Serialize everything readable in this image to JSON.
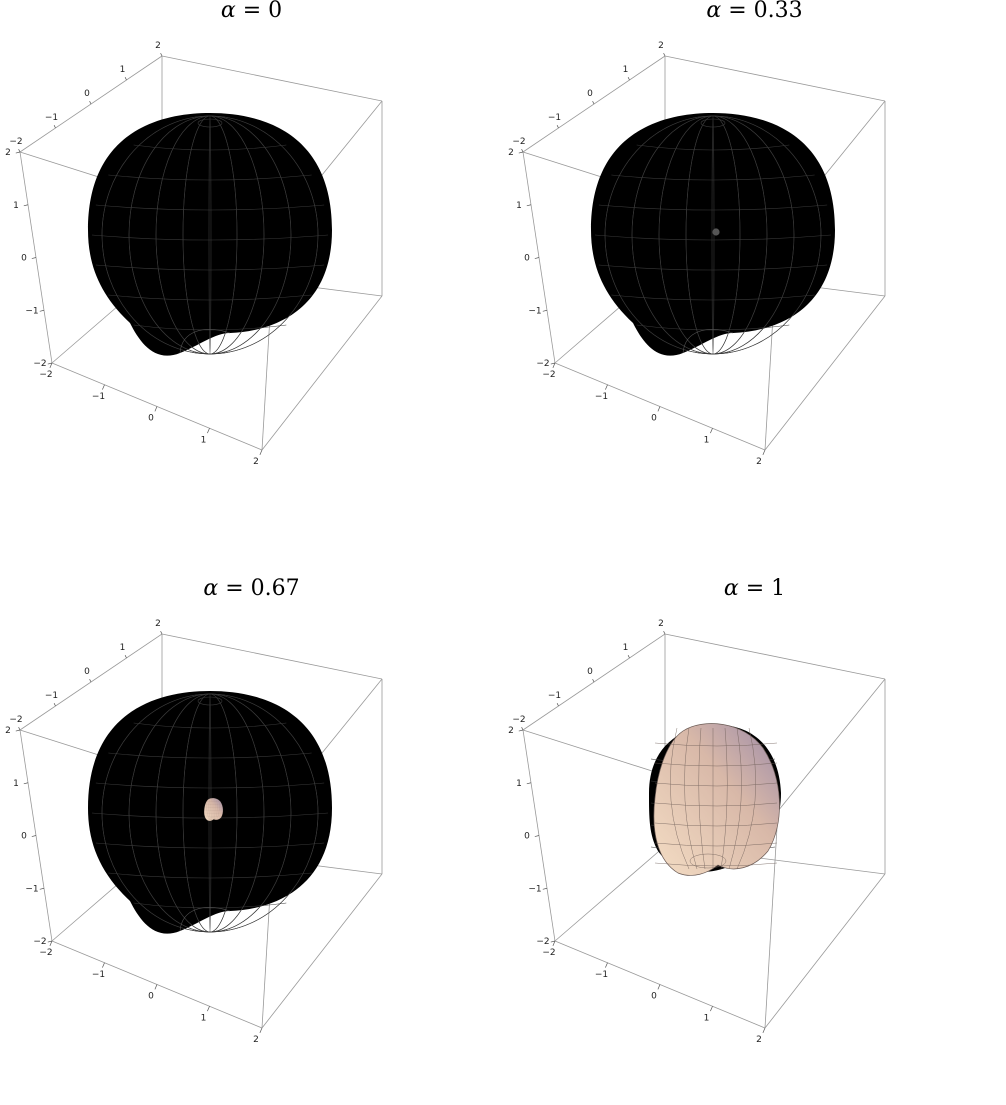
{
  "panels": [
    {
      "symbol": "α",
      "equals": "=",
      "value": "0",
      "alpha": 0
    },
    {
      "symbol": "α",
      "equals": "=",
      "value": "0.33",
      "alpha": 0.33
    },
    {
      "symbol": "α",
      "equals": "=",
      "value": "0.67",
      "alpha": 0.67
    },
    {
      "symbol": "α",
      "equals": "=",
      "value": "1",
      "alpha": 1
    }
  ],
  "axes": {
    "top_ticks": [
      "2",
      "1",
      "0",
      "−1",
      "−2"
    ],
    "left_ticks": [
      "2",
      "1",
      "0",
      "−1",
      "−2"
    ],
    "bottom_ticks": [
      "−2",
      "−1",
      "0",
      "1",
      "2"
    ]
  },
  "colors": {
    "outer_surface": "#000000",
    "outer_mesh": "#3a3a3a",
    "inner_surface_light": "#f4ddc4",
    "inner_surface_dark": "#9c8aa8",
    "box": "#999999"
  }
}
